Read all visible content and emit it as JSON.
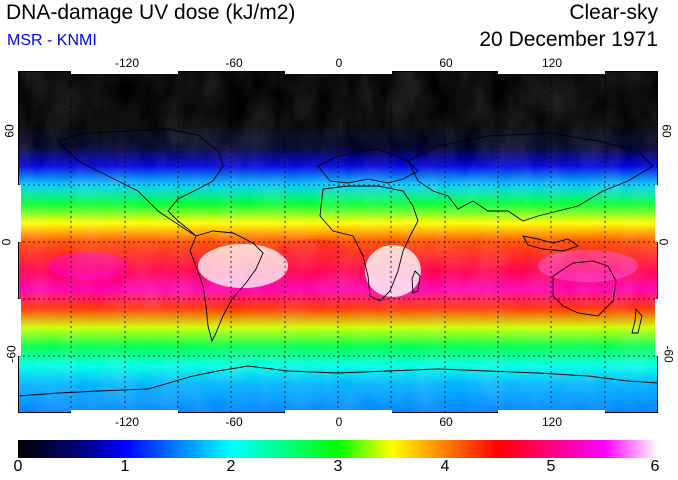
{
  "header": {
    "title": "DNA-damage UV dose (kJ/m2)",
    "subtitle": "MSR - KNMI",
    "sky_condition": "Clear-sky",
    "date": "20 December 1971"
  },
  "map": {
    "lon_ticks": [
      "-120",
      "-60",
      "0",
      "60",
      "120"
    ],
    "lat_ticks": [
      "60",
      "0",
      "-60"
    ],
    "lon_values": [
      -120,
      -60,
      0,
      60,
      120
    ],
    "lat_values": [
      60,
      0,
      -60
    ],
    "lon_range": [
      -180,
      180
    ],
    "lat_range": [
      90,
      -90
    ],
    "lat_profile": [
      {
        "lat": 90,
        "dose": 0.0
      },
      {
        "lat": 62,
        "dose": 0.0
      },
      {
        "lat": 50,
        "dose": 0.2
      },
      {
        "lat": 40,
        "dose": 0.9
      },
      {
        "lat": 30,
        "dose": 1.8
      },
      {
        "lat": 20,
        "dose": 2.8
      },
      {
        "lat": 10,
        "dose": 3.5
      },
      {
        "lat": 0,
        "dose": 4.2
      },
      {
        "lat": -15,
        "dose": 4.8
      },
      {
        "lat": -25,
        "dose": 5.2
      },
      {
        "lat": -35,
        "dose": 4.3
      },
      {
        "lat": -45,
        "dose": 3.4
      },
      {
        "lat": -55,
        "dose": 2.7
      },
      {
        "lat": -65,
        "dose": 2.1
      },
      {
        "lat": -75,
        "dose": 1.7
      },
      {
        "lat": -90,
        "dose": 1.5
      }
    ]
  },
  "colorbar": {
    "labels": [
      "0",
      "1",
      "2",
      "3",
      "4",
      "5",
      "6"
    ],
    "min": 0,
    "max": 6,
    "stops": [
      {
        "v": 0.0,
        "c": "#000000"
      },
      {
        "v": 0.6,
        "c": "#000080"
      },
      {
        "v": 1.0,
        "c": "#0000ff"
      },
      {
        "v": 2.0,
        "c": "#00ffff"
      },
      {
        "v": 2.5,
        "c": "#00ff80"
      },
      {
        "v": 3.0,
        "c": "#00ff00"
      },
      {
        "v": 3.5,
        "c": "#ffff00"
      },
      {
        "v": 4.0,
        "c": "#ff8000"
      },
      {
        "v": 4.5,
        "c": "#ff0000"
      },
      {
        "v": 5.0,
        "c": "#ff0080"
      },
      {
        "v": 5.5,
        "c": "#ff00ff"
      },
      {
        "v": 6.0,
        "c": "#ffffff"
      }
    ]
  }
}
